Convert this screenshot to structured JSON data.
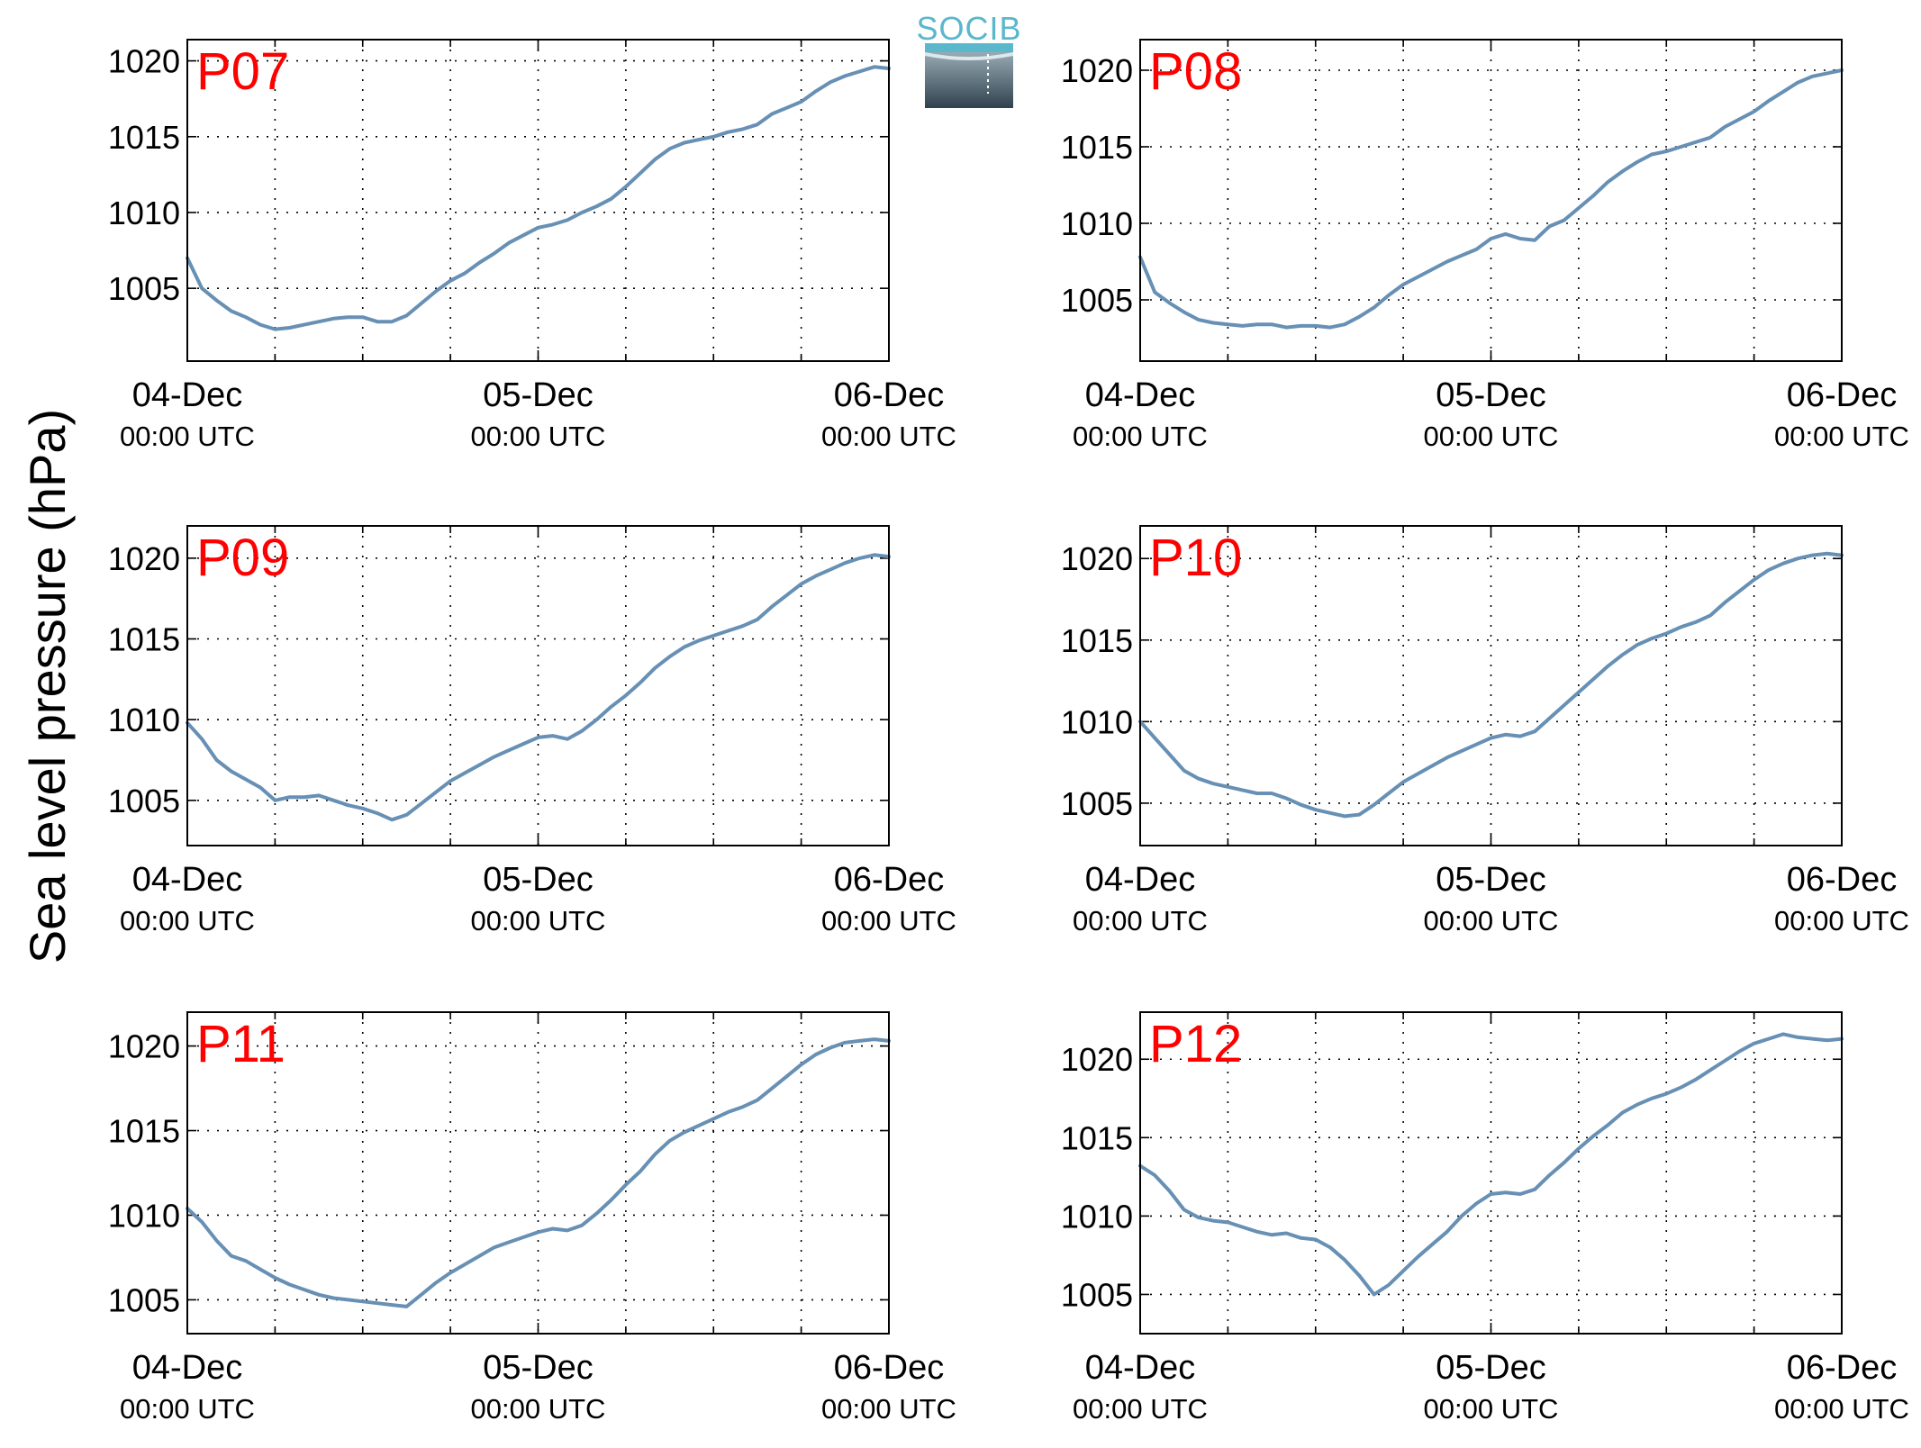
{
  "figure": {
    "ylabel": "Sea level pressure (hPa)",
    "logo_text": "SOCIB",
    "colors": {
      "series": "#6790b4",
      "panel_label": "#ff0000",
      "grid": "#000000",
      "logo_text": "#5ab7cc"
    }
  },
  "chart_data": [
    {
      "type": "line",
      "panel_label": "P07",
      "x_ticks": [
        {
          "day": "04-Dec",
          "time": "00:00 UTC"
        },
        {
          "day": "05-Dec",
          "time": "00:00 UTC"
        },
        {
          "day": "06-Dec",
          "time": "00:00 UTC"
        }
      ],
      "x_unit": "hours since 04-Dec 00:00 UTC",
      "xlim": [
        0,
        48
      ],
      "ylim": [
        1000.2,
        1021.4
      ],
      "y_ticks": [
        1005,
        1010,
        1015,
        1020
      ],
      "grid": true,
      "series": [
        {
          "x": [
            0,
            1,
            2,
            3,
            4,
            5,
            6,
            7,
            8,
            9,
            10,
            11,
            12,
            13,
            14,
            15,
            16,
            17,
            18,
            19,
            20,
            21,
            22,
            23,
            24,
            25,
            26,
            27,
            28,
            29,
            30,
            31,
            32,
            33,
            34,
            35,
            36,
            37,
            38,
            39,
            40,
            41,
            42,
            43,
            44,
            45,
            46,
            47,
            48
          ],
          "values": [
            1007.0,
            1005.0,
            1004.2,
            1003.5,
            1003.1,
            1002.6,
            1002.3,
            1002.4,
            1002.6,
            1002.8,
            1003.0,
            1003.1,
            1003.1,
            1002.8,
            1002.8,
            1003.2,
            1004.0,
            1004.8,
            1005.5,
            1006.0,
            1006.7,
            1007.3,
            1008.0,
            1008.5,
            1009.0,
            1009.2,
            1009.5,
            1010.0,
            1010.4,
            1010.9,
            1011.7,
            1012.6,
            1013.5,
            1014.2,
            1014.6,
            1014.8,
            1015.0,
            1015.3,
            1015.5,
            1015.8,
            1016.5,
            1016.9,
            1017.3,
            1018.0,
            1018.6,
            1019.0,
            1019.3,
            1019.6,
            1019.5
          ]
        }
      ]
    },
    {
      "type": "line",
      "panel_label": "P08",
      "x_ticks": [
        {
          "day": "04-Dec",
          "time": "00:00 UTC"
        },
        {
          "day": "05-Dec",
          "time": "00:00 UTC"
        },
        {
          "day": "06-Dec",
          "time": "00:00 UTC"
        }
      ],
      "x_unit": "hours since 04-Dec 00:00 UTC",
      "xlim": [
        0,
        48
      ],
      "ylim": [
        1001.0,
        1022.0
      ],
      "y_ticks": [
        1005,
        1010,
        1015,
        1020
      ],
      "grid": true,
      "series": [
        {
          "x": [
            0,
            1,
            2,
            3,
            4,
            5,
            6,
            7,
            8,
            9,
            10,
            11,
            12,
            13,
            14,
            15,
            16,
            17,
            18,
            19,
            20,
            21,
            22,
            23,
            24,
            25,
            26,
            27,
            28,
            29,
            30,
            31,
            32,
            33,
            34,
            35,
            36,
            37,
            38,
            39,
            40,
            41,
            42,
            43,
            44,
            45,
            46,
            47,
            48
          ],
          "values": [
            1007.8,
            1005.5,
            1004.8,
            1004.2,
            1003.7,
            1003.5,
            1003.4,
            1003.3,
            1003.4,
            1003.4,
            1003.2,
            1003.3,
            1003.3,
            1003.2,
            1003.4,
            1003.9,
            1004.5,
            1005.3,
            1006.0,
            1006.5,
            1007.0,
            1007.5,
            1007.9,
            1008.3,
            1009.0,
            1009.3,
            1009.0,
            1008.9,
            1009.8,
            1010.2,
            1011.0,
            1011.8,
            1012.7,
            1013.4,
            1014.0,
            1014.5,
            1014.7,
            1015.0,
            1015.3,
            1015.6,
            1016.3,
            1016.8,
            1017.3,
            1018.0,
            1018.6,
            1019.2,
            1019.6,
            1019.8,
            1020.0
          ]
        }
      ]
    },
    {
      "type": "line",
      "panel_label": "P09",
      "x_ticks": [
        {
          "day": "04-Dec",
          "time": "00:00 UTC"
        },
        {
          "day": "05-Dec",
          "time": "00:00 UTC"
        },
        {
          "day": "06-Dec",
          "time": "00:00 UTC"
        }
      ],
      "x_unit": "hours since 04-Dec 00:00 UTC",
      "xlim": [
        0,
        48
      ],
      "ylim": [
        1002.2,
        1022.0
      ],
      "y_ticks": [
        1005,
        1010,
        1015,
        1020
      ],
      "grid": true,
      "series": [
        {
          "x": [
            0,
            1,
            2,
            3,
            4,
            5,
            6,
            7,
            8,
            9,
            10,
            11,
            12,
            13,
            14,
            15,
            16,
            17,
            18,
            19,
            20,
            21,
            22,
            23,
            24,
            25,
            26,
            27,
            28,
            29,
            30,
            31,
            32,
            33,
            34,
            35,
            36,
            37,
            38,
            39,
            40,
            41,
            42,
            43,
            44,
            45,
            46,
            47,
            48
          ],
          "values": [
            1009.8,
            1008.8,
            1007.5,
            1006.8,
            1006.3,
            1005.8,
            1005.0,
            1005.2,
            1005.2,
            1005.3,
            1005.0,
            1004.7,
            1004.5,
            1004.2,
            1003.8,
            1004.1,
            1004.8,
            1005.5,
            1006.2,
            1006.7,
            1007.2,
            1007.7,
            1008.1,
            1008.5,
            1008.9,
            1009.0,
            1008.8,
            1009.3,
            1010.0,
            1010.8,
            1011.5,
            1012.3,
            1013.2,
            1013.9,
            1014.5,
            1014.9,
            1015.2,
            1015.5,
            1015.8,
            1016.2,
            1017.0,
            1017.7,
            1018.4,
            1018.9,
            1019.3,
            1019.7,
            1020.0,
            1020.2,
            1020.1
          ]
        }
      ]
    },
    {
      "type": "line",
      "panel_label": "P10",
      "x_ticks": [
        {
          "day": "04-Dec",
          "time": "00:00 UTC"
        },
        {
          "day": "05-Dec",
          "time": "00:00 UTC"
        },
        {
          "day": "06-Dec",
          "time": "00:00 UTC"
        }
      ],
      "x_unit": "hours since 04-Dec 00:00 UTC",
      "xlim": [
        0,
        48
      ],
      "ylim": [
        1002.4,
        1022.0
      ],
      "y_ticks": [
        1005,
        1010,
        1015,
        1020
      ],
      "grid": true,
      "series": [
        {
          "x": [
            0,
            1,
            2,
            3,
            4,
            5,
            6,
            7,
            8,
            9,
            10,
            11,
            12,
            13,
            14,
            15,
            16,
            17,
            18,
            19,
            20,
            21,
            22,
            23,
            24,
            25,
            26,
            27,
            28,
            29,
            30,
            31,
            32,
            33,
            34,
            35,
            36,
            37,
            38,
            39,
            40,
            41,
            42,
            43,
            44,
            45,
            46,
            47,
            48
          ],
          "values": [
            1010.0,
            1009.0,
            1008.0,
            1007.0,
            1006.5,
            1006.2,
            1006.0,
            1005.8,
            1005.6,
            1005.6,
            1005.3,
            1004.9,
            1004.6,
            1004.4,
            1004.2,
            1004.3,
            1004.9,
            1005.6,
            1006.3,
            1006.8,
            1007.3,
            1007.8,
            1008.2,
            1008.6,
            1009.0,
            1009.2,
            1009.1,
            1009.4,
            1010.2,
            1011.0,
            1011.8,
            1012.6,
            1013.4,
            1014.1,
            1014.7,
            1015.1,
            1015.4,
            1015.8,
            1016.1,
            1016.5,
            1017.3,
            1018.0,
            1018.7,
            1019.3,
            1019.7,
            1020.0,
            1020.2,
            1020.3,
            1020.2
          ]
        }
      ]
    },
    {
      "type": "line",
      "panel_label": "P11",
      "x_ticks": [
        {
          "day": "04-Dec",
          "time": "00:00 UTC"
        },
        {
          "day": "05-Dec",
          "time": "00:00 UTC"
        },
        {
          "day": "06-Dec",
          "time": "00:00 UTC"
        }
      ],
      "x_unit": "hours since 04-Dec 00:00 UTC",
      "xlim": [
        0,
        48
      ],
      "ylim": [
        1003.0,
        1022.0
      ],
      "y_ticks": [
        1005,
        1010,
        1015,
        1020
      ],
      "grid": true,
      "series": [
        {
          "x": [
            0,
            1,
            2,
            3,
            4,
            5,
            6,
            7,
            8,
            9,
            10,
            11,
            12,
            13,
            14,
            15,
            16,
            17,
            18,
            19,
            20,
            21,
            22,
            23,
            24,
            25,
            26,
            27,
            28,
            29,
            30,
            31,
            32,
            33,
            34,
            35,
            36,
            37,
            38,
            39,
            40,
            41,
            42,
            43,
            44,
            45,
            46,
            47,
            48
          ],
          "values": [
            1010.4,
            1009.6,
            1008.5,
            1007.6,
            1007.3,
            1006.8,
            1006.3,
            1005.9,
            1005.6,
            1005.3,
            1005.1,
            1005.0,
            1004.9,
            1004.8,
            1004.7,
            1004.6,
            1005.3,
            1006.0,
            1006.6,
            1007.1,
            1007.6,
            1008.1,
            1008.4,
            1008.7,
            1009.0,
            1009.2,
            1009.1,
            1009.4,
            1010.1,
            1010.9,
            1011.8,
            1012.6,
            1013.6,
            1014.4,
            1014.9,
            1015.3,
            1015.7,
            1016.1,
            1016.4,
            1016.8,
            1017.5,
            1018.2,
            1018.9,
            1019.5,
            1019.9,
            1020.2,
            1020.3,
            1020.4,
            1020.3
          ]
        }
      ]
    },
    {
      "type": "line",
      "panel_label": "P12",
      "x_ticks": [
        {
          "day": "04-Dec",
          "time": "00:00 UTC"
        },
        {
          "day": "05-Dec",
          "time": "00:00 UTC"
        },
        {
          "day": "06-Dec",
          "time": "00:00 UTC"
        }
      ],
      "x_unit": "hours since 04-Dec 00:00 UTC",
      "xlim": [
        0,
        48
      ],
      "ylim": [
        1002.5,
        1023.0
      ],
      "y_ticks": [
        1005,
        1010,
        1015,
        1020
      ],
      "grid": true,
      "series": [
        {
          "x": [
            0,
            1,
            2,
            3,
            4,
            5,
            6,
            7,
            8,
            9,
            10,
            11,
            12,
            13,
            14,
            15,
            16,
            17,
            18,
            19,
            20,
            21,
            22,
            23,
            24,
            25,
            26,
            27,
            28,
            29,
            30,
            31,
            32,
            33,
            34,
            35,
            36,
            37,
            38,
            39,
            40,
            41,
            42,
            43,
            44,
            45,
            46,
            47,
            48
          ],
          "values": [
            1013.2,
            1012.6,
            1011.6,
            1010.4,
            1009.9,
            1009.7,
            1009.6,
            1009.3,
            1009.0,
            1008.8,
            1008.9,
            1008.6,
            1008.5,
            1008.0,
            1007.2,
            1006.2,
            1005.0,
            1005.6,
            1006.5,
            1007.4,
            1008.2,
            1009.0,
            1010.0,
            1010.8,
            1011.4,
            1011.5,
            1011.4,
            1011.7,
            1012.6,
            1013.4,
            1014.3,
            1015.1,
            1015.8,
            1016.6,
            1017.1,
            1017.5,
            1017.8,
            1018.2,
            1018.7,
            1019.3,
            1019.9,
            1020.5,
            1021.0,
            1021.3,
            1021.6,
            1021.4,
            1021.3,
            1021.2,
            1021.3
          ]
        }
      ]
    }
  ]
}
